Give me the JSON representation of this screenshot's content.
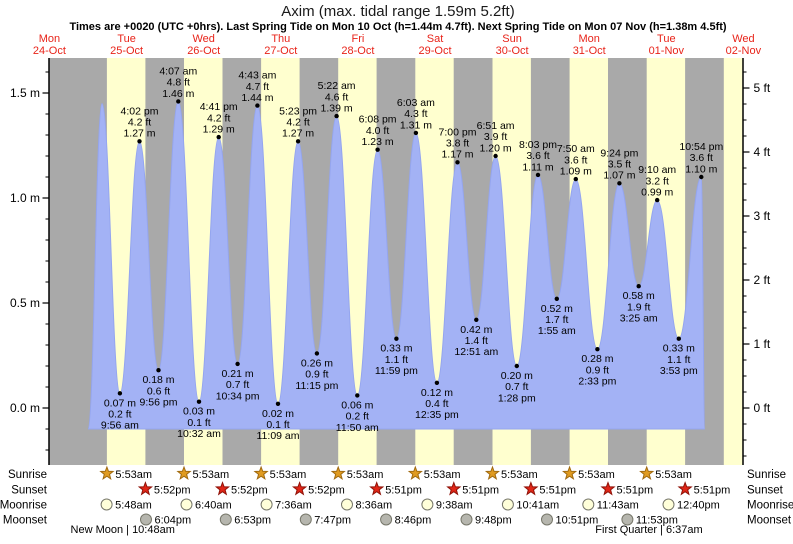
{
  "title": "Axim (max. tidal range 1.59m 5.2ft)",
  "subtitle": "Times are +0020 (UTC +0hrs). Last Spring Tide on Mon 10 Oct (h=1.44m 4.7ft). Next Spring Tide on Mon 07 Nov (h=1.38m 4.5ft)",
  "colors": {
    "night": "#a9a9a9",
    "day": "#ffffcf",
    "water": "#a3b2f5",
    "water_edge": "#94a5ef",
    "day_label": "#e8241a",
    "sunrise": "#e09b20",
    "sunrise_edge": "#a06a10",
    "sunset": "#e02617",
    "sunset_edge": "#8f1208",
    "moon_light": "#ffffd9",
    "moon_dark": "#b6b6ae",
    "moon_edge": "#77776a"
  },
  "days": [
    {
      "weekday": "Mon",
      "date": "24-Oct"
    },
    {
      "weekday": "Tue",
      "date": "25-Oct"
    },
    {
      "weekday": "Wed",
      "date": "26-Oct"
    },
    {
      "weekday": "Thu",
      "date": "27-Oct"
    },
    {
      "weekday": "Fri",
      "date": "28-Oct"
    },
    {
      "weekday": "Sat",
      "date": "29-Oct"
    },
    {
      "weekday": "Sun",
      "date": "30-Oct"
    },
    {
      "weekday": "Mon",
      "date": "31-Oct"
    },
    {
      "weekday": "Tue",
      "date": "01-Nov"
    },
    {
      "weekday": "Wed",
      "date": "02-Nov"
    }
  ],
  "axis": {
    "left_ticks": [
      "0.0 m",
      "0.5 m",
      "1.0 m",
      "1.5 m"
    ],
    "right_ticks": [
      "0 ft",
      "1 ft",
      "2 ft",
      "3 ft",
      "4 ft",
      "5 ft"
    ]
  },
  "chart_data": {
    "type": "area",
    "title": "Axim tide height",
    "ylabel_left": "m",
    "ylabel_right": "ft",
    "x_start": "Mon 24-Oct 12:00",
    "x_end": "Wed 02-Nov 12:00",
    "ylim_m": [
      -0.27,
      1.67
    ],
    "tide_events": [
      {
        "day": 1,
        "time": "12:00 am",
        "m": -0.1,
        "type": "start",
        "labeled": false
      },
      {
        "day": 1,
        "time": "4:21 am",
        "m": 1.45,
        "type": "high",
        "labeled": false
      },
      {
        "day": 1,
        "time": "9:56 am",
        "m": 0.07,
        "ft": 0.2,
        "type": "low",
        "labeled": true
      },
      {
        "day": 1,
        "time": "4:02 pm",
        "m": 1.27,
        "ft": 4.2,
        "type": "high",
        "labeled": true
      },
      {
        "day": 1,
        "time": "9:56 pm",
        "m": 0.18,
        "ft": 0.6,
        "type": "low",
        "labeled": true
      },
      {
        "day": 2,
        "time": "4:07 am",
        "m": 1.46,
        "ft": 4.8,
        "type": "high",
        "labeled": true
      },
      {
        "day": 2,
        "time": "10:32 am",
        "m": 0.03,
        "ft": 0.1,
        "type": "low",
        "labeled": true
      },
      {
        "day": 2,
        "time": "4:41 pm",
        "m": 1.29,
        "ft": 4.2,
        "type": "high",
        "labeled": true
      },
      {
        "day": 2,
        "time": "10:34 pm",
        "m": 0.21,
        "ft": 0.7,
        "type": "low",
        "labeled": true
      },
      {
        "day": 3,
        "time": "4:43 am",
        "m": 1.44,
        "ft": 4.7,
        "type": "high",
        "labeled": true
      },
      {
        "day": 3,
        "time": "11:09 am",
        "m": 0.02,
        "ft": 0.1,
        "type": "low",
        "labeled": true
      },
      {
        "day": 3,
        "time": "5:23 pm",
        "m": 1.27,
        "ft": 4.2,
        "type": "high",
        "labeled": true
      },
      {
        "day": 3,
        "time": "11:15 pm",
        "m": 0.26,
        "ft": 0.9,
        "type": "low",
        "labeled": true
      },
      {
        "day": 4,
        "time": "5:22 am",
        "m": 1.39,
        "ft": 4.6,
        "type": "high",
        "labeled": true
      },
      {
        "day": 4,
        "time": "11:50 am",
        "m": 0.06,
        "ft": 0.2,
        "type": "low",
        "labeled": true
      },
      {
        "day": 4,
        "time": "6:08 pm",
        "m": 1.23,
        "ft": 4.0,
        "type": "high",
        "labeled": true
      },
      {
        "day": 4,
        "time": "11:59 pm",
        "m": 0.33,
        "ft": 1.1,
        "type": "low",
        "labeled": true
      },
      {
        "day": 5,
        "time": "6:03 am",
        "m": 1.31,
        "ft": 4.3,
        "type": "high",
        "labeled": true
      },
      {
        "day": 5,
        "time": "12:35 pm",
        "m": 0.12,
        "ft": 0.4,
        "type": "low",
        "labeled": true
      },
      {
        "day": 5,
        "time": "7:00 pm",
        "m": 1.17,
        "ft": 3.8,
        "type": "high",
        "labeled": true
      },
      {
        "day": 6,
        "time": "12:51 am",
        "m": 0.42,
        "ft": 1.4,
        "type": "low",
        "labeled": true
      },
      {
        "day": 6,
        "time": "6:51 am",
        "m": 1.2,
        "ft": 3.9,
        "type": "high",
        "labeled": true
      },
      {
        "day": 6,
        "time": "1:28 pm",
        "m": 0.2,
        "ft": 0.7,
        "type": "low",
        "labeled": true
      },
      {
        "day": 6,
        "time": "8:03 pm",
        "m": 1.11,
        "ft": 3.6,
        "type": "high",
        "labeled": true
      },
      {
        "day": 7,
        "time": "1:55 am",
        "m": 0.52,
        "ft": 1.7,
        "type": "low",
        "labeled": true
      },
      {
        "day": 7,
        "time": "7:50 am",
        "m": 1.09,
        "ft": 3.6,
        "type": "high",
        "labeled": true
      },
      {
        "day": 7,
        "time": "2:33 pm",
        "m": 0.28,
        "ft": 0.9,
        "type": "low",
        "labeled": true
      },
      {
        "day": 7,
        "time": "9:24 pm",
        "m": 1.07,
        "ft": 3.5,
        "type": "high",
        "labeled": true
      },
      {
        "day": 8,
        "time": "3:25 am",
        "m": 0.58,
        "ft": 1.9,
        "type": "low",
        "labeled": true
      },
      {
        "day": 8,
        "time": "9:10 am",
        "m": 0.99,
        "ft": 3.2,
        "type": "high",
        "labeled": true
      },
      {
        "day": 8,
        "time": "3:53 pm",
        "m": 0.33,
        "ft": 1.1,
        "type": "low",
        "labeled": true
      },
      {
        "day": 8,
        "time": "10:54 pm",
        "m": 1.1,
        "ft": 3.6,
        "type": "high",
        "labeled": true
      },
      {
        "day": 8,
        "time": "11:59 pm",
        "m": -0.1,
        "type": "end",
        "labeled": false
      }
    ]
  },
  "sun_moon": {
    "row_labels": {
      "sunrise": "Sunrise",
      "sunset": "Sunset",
      "moonrise": "Moonrise",
      "moonset": "Moonset"
    },
    "sunrise": [
      {
        "day": 1,
        "time": "5:53am"
      },
      {
        "day": 2,
        "time": "5:53am"
      },
      {
        "day": 3,
        "time": "5:53am"
      },
      {
        "day": 4,
        "time": "5:53am"
      },
      {
        "day": 5,
        "time": "5:53am"
      },
      {
        "day": 6,
        "time": "5:53am"
      },
      {
        "day": 7,
        "time": "5:53am"
      },
      {
        "day": 8,
        "time": "5:53am"
      }
    ],
    "sunset": [
      {
        "day": 1,
        "time": "5:52pm"
      },
      {
        "day": 2,
        "time": "5:52pm"
      },
      {
        "day": 3,
        "time": "5:52pm"
      },
      {
        "day": 4,
        "time": "5:51pm"
      },
      {
        "day": 5,
        "time": "5:51pm"
      },
      {
        "day": 6,
        "time": "5:51pm"
      },
      {
        "day": 7,
        "time": "5:51pm"
      },
      {
        "day": 8,
        "time": "5:51pm"
      }
    ],
    "moonrise": [
      {
        "day": 1,
        "time": "5:48am"
      },
      {
        "day": 2,
        "time": "6:40am"
      },
      {
        "day": 3,
        "time": "7:36am"
      },
      {
        "day": 4,
        "time": "8:36am"
      },
      {
        "day": 5,
        "time": "9:38am"
      },
      {
        "day": 6,
        "time": "10:41am"
      },
      {
        "day": 7,
        "time": "11:43am"
      },
      {
        "day": 8,
        "time": "12:40pm"
      }
    ],
    "moonset": [
      {
        "day": 1,
        "time": "6:04pm"
      },
      {
        "day": 2,
        "time": "6:53pm"
      },
      {
        "day": 3,
        "time": "7:47pm"
      },
      {
        "day": 4,
        "time": "8:46pm"
      },
      {
        "day": 5,
        "time": "9:48pm"
      },
      {
        "day": 6,
        "time": "10:51pm"
      },
      {
        "day": 7,
        "time": "11:53pm"
      }
    ],
    "moon_phases": [
      {
        "day": 1,
        "time": "10:48am",
        "text": "New Moon | 10:48am"
      },
      {
        "day": 8,
        "time": "6:37am",
        "text": "First Quarter | 6:37am"
      }
    ]
  }
}
